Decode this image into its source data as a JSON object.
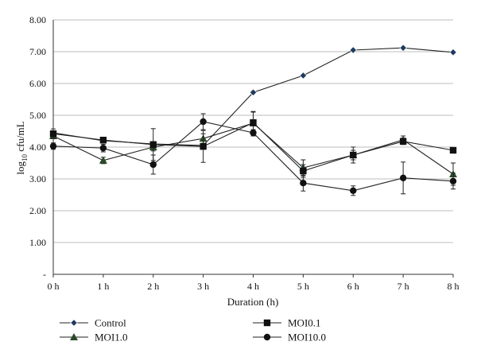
{
  "chart_data": {
    "type": "line",
    "title": "",
    "xlabel": "Duration (h)",
    "ylabel_main": "log",
    "ylabel_sub": "10",
    "ylabel_rest": " cfu/mL",
    "categories": [
      "0 h",
      "1 h",
      "2 h",
      "3 h",
      "4 h",
      "5 h",
      "6 h",
      "7 h",
      "8 h"
    ],
    "y_tick_labels": [
      "-",
      "1.00",
      "2.00",
      "3.00",
      "4.00",
      "5.00",
      "6.00",
      "7.00",
      "8.00"
    ],
    "ylim": [
      0,
      8
    ],
    "grid": "horizontal",
    "legend_position": "bottom",
    "series": [
      {
        "name": "Control",
        "marker": "diamond",
        "color": "#1f3a5f",
        "values": [
          4.45,
          4.2,
          4.1,
          4.05,
          5.72,
          6.25,
          7.05,
          7.12,
          6.98
        ],
        "errors": [
          0,
          0,
          0,
          0,
          0,
          0,
          0,
          0,
          0
        ]
      },
      {
        "name": "MOI1.0",
        "marker": "triangle",
        "color": "#2a4a2a",
        "values": [
          4.35,
          3.58,
          4.0,
          4.27,
          4.75,
          3.35,
          3.75,
          4.23,
          3.15
        ],
        "errors": [
          0,
          0.1,
          0.12,
          0.15,
          0.35,
          0.25,
          0.25,
          0.12,
          0.35
        ]
      },
      {
        "name": "MOI0.1",
        "marker": "square",
        "color": "#111111",
        "values": [
          4.42,
          4.22,
          4.08,
          4.02,
          4.77,
          3.25,
          3.75,
          4.18,
          3.9
        ],
        "errors": [
          0.15,
          0,
          0.5,
          0.5,
          0.35,
          0.2,
          0.15,
          0.1,
          0
        ]
      },
      {
        "name": "MOI10.0",
        "marker": "circle",
        "color": "#111111",
        "values": [
          4.03,
          3.97,
          3.45,
          4.8,
          4.45,
          2.87,
          2.63,
          3.03,
          2.93
        ],
        "errors": [
          0.1,
          0.12,
          0.3,
          0.25,
          0.1,
          0.25,
          0.15,
          0.5,
          0.25
        ]
      }
    ]
  }
}
